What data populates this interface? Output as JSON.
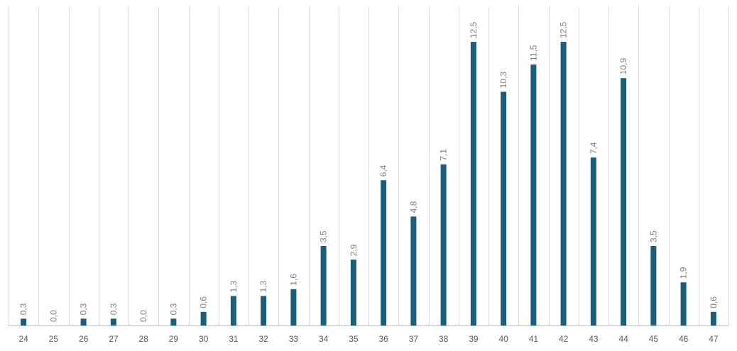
{
  "chart_data": {
    "type": "bar",
    "title": "",
    "xlabel": "",
    "ylabel": "",
    "categories": [
      "24",
      "25",
      "26",
      "27",
      "28",
      "29",
      "30",
      "31",
      "32",
      "33",
      "34",
      "35",
      "36",
      "37",
      "38",
      "39",
      "40",
      "41",
      "42",
      "43",
      "44",
      "45",
      "46",
      "47"
    ],
    "values": [
      0.3,
      0.0,
      0.3,
      0.3,
      0.0,
      0.3,
      0.6,
      1.3,
      1.3,
      1.6,
      3.5,
      2.9,
      6.4,
      4.8,
      7.1,
      12.5,
      10.3,
      11.5,
      12.5,
      7.4,
      10.9,
      3.5,
      1.9,
      0.6
    ],
    "value_labels": [
      "0,3",
      "0,0",
      "0,3",
      "0,3",
      "0,0",
      "0,3",
      "0,6",
      "1,3",
      "1,3",
      "1,6",
      "3,5",
      "2,9",
      "6,4",
      "4,8",
      "7,1",
      "12,5",
      "10,3",
      "11,5",
      "12,5",
      "7,4",
      "10,9",
      "3,5",
      "1,9",
      "0,6"
    ],
    "ylim": [
      0,
      14
    ],
    "grid": "vertical",
    "legend": "none",
    "colors": {
      "bar": "#1a5e7c",
      "grid": "#d9d9d9",
      "axis": "#bfbfbf",
      "tick_text": "#595959",
      "data_label_text": "#7f7f7f"
    }
  }
}
